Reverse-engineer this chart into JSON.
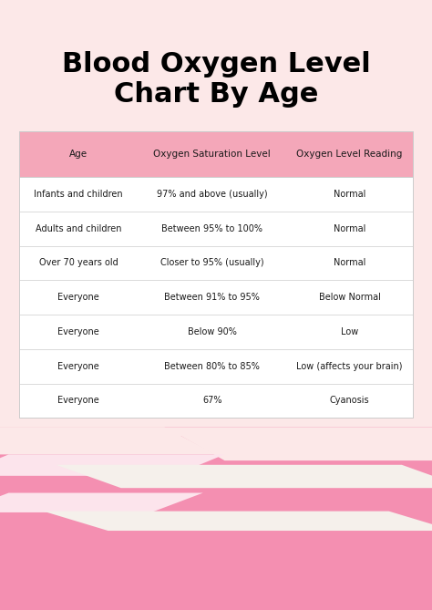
{
  "title_line1": "Blood Oxygen Level",
  "title_line2": "Chart By Age",
  "bg_color": "#fce8e8",
  "table_bg": "#ffffff",
  "header_bg": "#f4a7b9",
  "header_text_color": "#1a1a1a",
  "row_text_color": "#1a1a1a",
  "border_color": "#cccccc",
  "columns": [
    "Age",
    "Oxygen Saturation Level",
    "Oxygen Level Reading"
  ],
  "rows": [
    [
      "Infants and children",
      "97% and above (usually)",
      "Normal"
    ],
    [
      "Adults and children",
      "Between 95% to 100%",
      "Normal"
    ],
    [
      "Over 70 years old",
      "Closer to 95% (usually)",
      "Normal"
    ],
    [
      "Everyone",
      "Between 91% to 95%",
      "Below Normal"
    ],
    [
      "Everyone",
      "Below 90%",
      "Low"
    ],
    [
      "Everyone",
      "Between 80% to 85%",
      "Low (affects your brain)"
    ],
    [
      "Everyone",
      "67%",
      "Cyanosis"
    ]
  ],
  "decoration_pink": "#f48fb1",
  "decoration_light_pink": "#fce4ec",
  "decoration_cream": "#f5f0eb"
}
